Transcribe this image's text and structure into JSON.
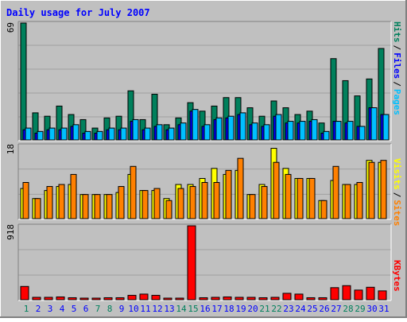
{
  "chart_data": [
    {
      "type": "bar",
      "title": "Daily usage for July 2007",
      "ymax_label": "69",
      "ylim": [
        0,
        69
      ],
      "grid": true,
      "legend": [
        "Pages",
        "Files",
        "Hits"
      ],
      "categories": [
        "1",
        "2",
        "3",
        "4",
        "5",
        "6",
        "7",
        "8",
        "9",
        "10",
        "11",
        "12",
        "13",
        "14",
        "15",
        "16",
        "17",
        "18",
        "19",
        "20",
        "21",
        "22",
        "23",
        "24",
        "25",
        "26",
        "27",
        "28",
        "29",
        "30",
        "31"
      ],
      "series": [
        {
          "name": "Hits",
          "color": "#00805c",
          "values": [
            69,
            16,
            14,
            20,
            15,
            12,
            7,
            13,
            14,
            29,
            12,
            27,
            9,
            13,
            22,
            17,
            20,
            25,
            25,
            19,
            14,
            23,
            19,
            15,
            17,
            10,
            48,
            35,
            26,
            36,
            54
          ]
        },
        {
          "name": "Files",
          "color": "#0000ff",
          "values": [
            6,
            4,
            6,
            6,
            8,
            4,
            4,
            6,
            6,
            11,
            6,
            8,
            6,
            9,
            17,
            8,
            12,
            13,
            15,
            9,
            8,
            14,
            10,
            10,
            11,
            4,
            11,
            10,
            8,
            19,
            15
          ]
        },
        {
          "name": "Pages",
          "color": "#00c0ff",
          "values": [
            7,
            5,
            7,
            7,
            9,
            5,
            5,
            7,
            7,
            12,
            7,
            9,
            7,
            10,
            18,
            9,
            13,
            14,
            16,
            10,
            9,
            15,
            11,
            11,
            12,
            5,
            11,
            11,
            8,
            19,
            15
          ]
        }
      ]
    },
    {
      "type": "bar",
      "ymax_label": "18",
      "ylim": [
        0,
        18
      ],
      "grid": true,
      "legend": [
        "Sites",
        "Visits"
      ],
      "categories": [
        "1",
        "2",
        "3",
        "4",
        "5",
        "6",
        "7",
        "8",
        "9",
        "10",
        "11",
        "12",
        "13",
        "14",
        "15",
        "16",
        "17",
        "18",
        "19",
        "20",
        "21",
        "22",
        "23",
        "24",
        "25",
        "26",
        "27",
        "28",
        "29",
        "30",
        "31"
      ],
      "series": [
        {
          "name": "Visits",
          "color": "#ffff00",
          "values": [
            7.5,
            5,
            7,
            8,
            8.5,
            6,
            6,
            6,
            6.5,
            11,
            7,
            7,
            5,
            8.5,
            8.5,
            10,
            12.5,
            11,
            12,
            6,
            8.5,
            17.5,
            12.5,
            10,
            10,
            4.5,
            9.5,
            8.5,
            8.5,
            14.5,
            14
          ]
        },
        {
          "name": "Sites",
          "color": "#ff8000",
          "values": [
            9,
            5,
            8,
            8.5,
            11,
            6,
            6,
            6,
            8,
            13,
            7,
            7.5,
            4.5,
            7.5,
            8,
            9,
            9,
            12,
            15,
            6,
            8,
            14,
            11,
            10,
            10,
            4.5,
            13,
            8.5,
            9,
            14,
            14.5
          ]
        }
      ]
    },
    {
      "type": "bar",
      "ymax_label": "918",
      "ylim": [
        0,
        918
      ],
      "grid": true,
      "legend": [
        "KBytes"
      ],
      "categories": [
        "1",
        "2",
        "3",
        "4",
        "5",
        "6",
        "7",
        "8",
        "9",
        "10",
        "11",
        "12",
        "13",
        "14",
        "15",
        "16",
        "17",
        "18",
        "19",
        "20",
        "21",
        "22",
        "23",
        "24",
        "25",
        "26",
        "27",
        "28",
        "29",
        "30",
        "31"
      ],
      "series": [
        {
          "name": "KBytes",
          "color": "#ff0000",
          "values": [
            165,
            30,
            30,
            35,
            25,
            20,
            20,
            25,
            25,
            55,
            70,
            55,
            20,
            20,
            918,
            25,
            30,
            35,
            30,
            30,
            25,
            30,
            80,
            70,
            25,
            25,
            150,
            175,
            120,
            155,
            110
          ]
        }
      ]
    }
  ],
  "day_labels": [
    "1",
    "2",
    "3",
    "4",
    "5",
    "6",
    "7",
    "8",
    "9",
    "10",
    "11",
    "12",
    "13",
    "14",
    "15",
    "16",
    "17",
    "18",
    "19",
    "20",
    "21",
    "22",
    "23",
    "24",
    "25",
    "26",
    "27",
    "28",
    "29",
    "30",
    "31"
  ],
  "weekend_days": [
    1,
    7,
    8,
    14,
    15,
    21,
    22,
    28,
    29
  ],
  "colors": {
    "background": "#c0c0c0",
    "title": "#0000ff",
    "weekday_label": "#0000ff",
    "weekend_label": "#00805c",
    "grid": "#a0a0a0",
    "bar_outline": "#000000"
  }
}
